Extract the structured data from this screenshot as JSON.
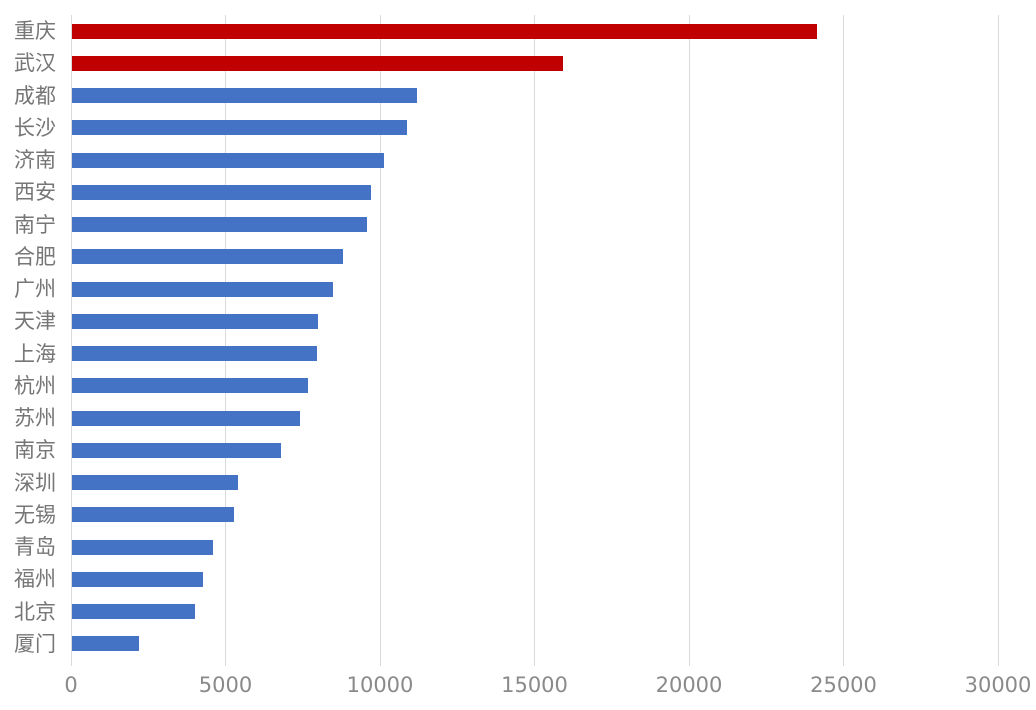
{
  "chart_data": {
    "type": "bar",
    "orientation": "horizontal",
    "categories": [
      "重庆",
      "武汉",
      "成都",
      "长沙",
      "济南",
      "西安",
      "南宁",
      "合肥",
      "广州",
      "天津",
      "上海",
      "杭州",
      "苏州",
      "南京",
      "深圳",
      "无锡",
      "青岛",
      "福州",
      "北京",
      "厦门"
    ],
    "values": [
      24100,
      15900,
      11150,
      10850,
      10100,
      9680,
      9550,
      8760,
      8440,
      7950,
      7930,
      7630,
      7380,
      6760,
      5360,
      5250,
      4570,
      4250,
      3980,
      2160
    ],
    "highlighted_categories": [
      "重庆",
      "武汉"
    ],
    "highlight_count": 2,
    "x_ticks": [
      0,
      5000,
      10000,
      15000,
      20000,
      25000,
      30000
    ],
    "x_tick_labels": [
      "0",
      "5000",
      "10000",
      "15000",
      "20000",
      "25000",
      "30000"
    ],
    "xlim": [
      0,
      30000
    ],
    "grid": true,
    "legend": false,
    "colors": {
      "bar_default": "#4472c4",
      "bar_highlight": "#c00000",
      "gridline": "#d9d9d9",
      "category_label": "#767676",
      "tick_label": "#8a8a8a",
      "background": "#ffffff"
    }
  }
}
